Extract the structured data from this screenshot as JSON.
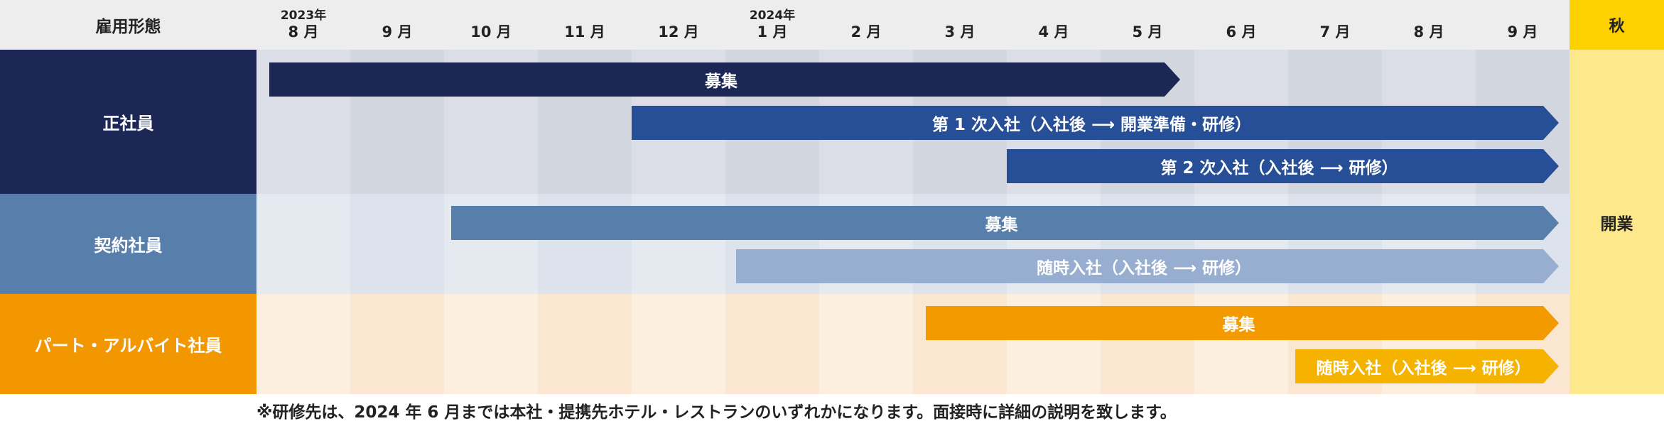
{
  "header": {
    "category_label": "雇用形態",
    "months": [
      {
        "year": "2023年",
        "month": "8 月"
      },
      {
        "year": "",
        "month": "9 月"
      },
      {
        "year": "",
        "month": "10 月"
      },
      {
        "year": "",
        "month": "11 月"
      },
      {
        "year": "",
        "month": "12 月"
      },
      {
        "year": "2024年",
        "month": "1 月"
      },
      {
        "year": "",
        "month": "2 月"
      },
      {
        "year": "",
        "month": "3 月"
      },
      {
        "year": "",
        "month": "4 月"
      },
      {
        "year": "",
        "month": "5 月"
      },
      {
        "year": "",
        "month": "6 月"
      },
      {
        "year": "",
        "month": "7 月"
      },
      {
        "year": "",
        "month": "8 月"
      },
      {
        "year": "",
        "month": "9 月"
      }
    ],
    "autumn_label": "秋"
  },
  "autumn_event": "開業",
  "groups": [
    {
      "label": "正社員",
      "bars": [
        {
          "label": "募集",
          "start": "2023-08",
          "end": "2024-05"
        },
        {
          "label": "第 1 次入社（入社後 ⟶ 開業準備・研修）",
          "start": "2023-12",
          "end": "2024-09"
        },
        {
          "label": "第 2 次入社（入社後 ⟶ 研修）",
          "start": "2024-04",
          "end": "2024-09"
        }
      ]
    },
    {
      "label": "契約社員",
      "bars": [
        {
          "label": "募集",
          "start": "2023-10",
          "end": "2024-09"
        },
        {
          "label": "随時入社（入社後 ⟶ 研修）",
          "start": "2024-01",
          "end": "2024-09"
        }
      ]
    },
    {
      "label": "パート・アルバイト社員",
      "bars": [
        {
          "label": "募集",
          "start": "2024-03",
          "end": "2024-09"
        },
        {
          "label": "随時入社（入社後 ⟶ 研修）",
          "start": "2024-07",
          "end": "2024-09"
        }
      ]
    }
  ],
  "footnote": "※研修先は、2024 年 6 月までは本社・提携先ホテル・レストランのいずれかになります。面接時に詳細の説明を致します。",
  "colors": {
    "fulltime_label": "#1d2755",
    "fulltime_bar_recruit": "#1d2755",
    "fulltime_bar_join": "#264f97",
    "contract_label": "#587fab",
    "contract_bar_recruit": "#587fab",
    "contract_bar_join": "#97aed0",
    "parttime_label": "#f29700",
    "parttime_bar_recruit": "#f29a00",
    "parttime_bar_join": "#f5b300",
    "autumn_header": "#fdd000",
    "autumn_body": "#fde98b"
  }
}
